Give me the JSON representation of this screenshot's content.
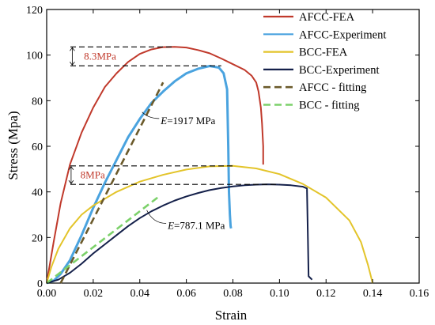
{
  "chart_data": {
    "type": "line",
    "xlabel": "Strain",
    "ylabel": "Stress (Mpa)",
    "xlim": [
      0,
      0.16
    ],
    "ylim": [
      0,
      120
    ],
    "xticks": [
      0.0,
      0.02,
      0.04,
      0.06,
      0.08,
      0.1,
      0.12,
      0.14,
      0.16
    ],
    "xtick_labels": [
      "0.00",
      "0.02",
      "0.04",
      "0.06",
      "0.08",
      "0.10",
      "0.12",
      "0.14",
      "0.16"
    ],
    "yticks": [
      0,
      20,
      40,
      60,
      80,
      100,
      120
    ],
    "ytick_labels": [
      "0",
      "20",
      "40",
      "60",
      "80",
      "100",
      "120"
    ],
    "legend_position": "top-right",
    "series": [
      {
        "name": "AFCC-FEA",
        "color": "#c0392b",
        "dash": "solid",
        "x": [
          0,
          0.003,
          0.006,
          0.01,
          0.015,
          0.02,
          0.025,
          0.03,
          0.035,
          0.04,
          0.045,
          0.05,
          0.055,
          0.06,
          0.065,
          0.07,
          0.075,
          0.08,
          0.085,
          0.088,
          0.09,
          0.091,
          0.092,
          0.0925,
          0.093,
          0.093
        ],
        "y": [
          0,
          18,
          35,
          52,
          66,
          77,
          86,
          92,
          97,
          100.5,
          102.5,
          103.5,
          103.6,
          103.3,
          102.2,
          100.8,
          98.5,
          96,
          93.5,
          91,
          88,
          84,
          77,
          70,
          60,
          52
        ]
      },
      {
        "name": "AFCC-Experiment",
        "color": "#4aa3df",
        "dash": "solid",
        "x": [
          0,
          0.003,
          0.006,
          0.01,
          0.015,
          0.02,
          0.025,
          0.03,
          0.035,
          0.04,
          0.045,
          0.05,
          0.055,
          0.06,
          0.065,
          0.07,
          0.074,
          0.076,
          0.0775,
          0.078,
          0.0783,
          0.0787,
          0.079,
          0.0792
        ],
        "y": [
          0,
          1,
          4,
          10,
          21,
          33,
          44,
          54,
          64,
          72,
          79,
          84,
          88.5,
          92,
          94,
          95.2,
          94.5,
          92,
          85,
          60,
          40,
          30,
          25,
          24
        ]
      },
      {
        "name": "BCC-FEA",
        "color": "#e3c42a",
        "dash": "solid",
        "x": [
          0,
          0.002,
          0.005,
          0.01,
          0.015,
          0.02,
          0.03,
          0.04,
          0.05,
          0.06,
          0.07,
          0.08,
          0.09,
          0.1,
          0.11,
          0.12,
          0.13,
          0.135,
          0.138,
          0.14
        ],
        "y": [
          0,
          7,
          15,
          24,
          30,
          34,
          40,
          44.5,
          47.5,
          49.8,
          51.2,
          51.4,
          50.3,
          47.8,
          43.5,
          37.5,
          27.5,
          18,
          8,
          0
        ]
      },
      {
        "name": "BCC-Experiment",
        "color": "#14204a",
        "dash": "solid",
        "x": [
          0,
          0.005,
          0.01,
          0.015,
          0.02,
          0.025,
          0.03,
          0.035,
          0.04,
          0.045,
          0.05,
          0.055,
          0.06,
          0.065,
          0.07,
          0.075,
          0.08,
          0.085,
          0.09,
          0.095,
          0.1,
          0.105,
          0.11,
          0.1118,
          0.1122,
          0.1125,
          0.1135,
          0.114
        ],
        "y": [
          0,
          1.5,
          4.5,
          8.5,
          13,
          17,
          21,
          25,
          28.5,
          31.5,
          34,
          36.2,
          38,
          39.5,
          40.8,
          41.7,
          42.4,
          42.9,
          43.2,
          43.3,
          43.2,
          42.9,
          42.3,
          41.5,
          20,
          3,
          2,
          1.5
        ]
      },
      {
        "name": "AFCC - fitting",
        "color": "#6b5a2b",
        "dash": "dashed",
        "x": [
          0.006,
          0.05
        ],
        "y": [
          0,
          88
        ]
      },
      {
        "name": "BCC - fitting",
        "color": "#7cd16a",
        "dash": "dashed",
        "x": [
          0.0,
          0.048
        ],
        "y": [
          0,
          37.8
        ]
      }
    ],
    "reference_lines": [
      {
        "style": "dashed",
        "y": 103.6,
        "x": [
          0.0,
          0.055
        ]
      },
      {
        "style": "dashed",
        "y": 95.3,
        "x": [
          0.0,
          0.075
        ]
      },
      {
        "style": "dashed",
        "y": 51.4,
        "x": [
          0.0,
          0.08
        ]
      },
      {
        "style": "dashed",
        "y": 43.3,
        "x": [
          0.0,
          0.1
        ]
      }
    ],
    "annotations": [
      {
        "text": "8.3MPa",
        "color": "#c0392b",
        "x": 0.016,
        "y": 99.4,
        "from_y": 103.6,
        "to_y": 95.3,
        "arrow_x": 0.011
      },
      {
        "text": "8MPa",
        "color": "#c0392b",
        "x": 0.0145,
        "y": 47.3,
        "from_y": 51.4,
        "to_y": 43.3,
        "arrow_x": 0.0105
      },
      {
        "text_italic": "E",
        "text": "=1917 MPa",
        "color": "#000000",
        "x": 0.049,
        "y": 71.5,
        "pointer_to": [
          0.041,
          75
        ]
      },
      {
        "text_italic": "E",
        "text": "=787.1 MPa",
        "color": "#000000",
        "x": 0.052,
        "y": 25.5,
        "pointer_to": [
          0.043,
          32
        ]
      }
    ]
  }
}
